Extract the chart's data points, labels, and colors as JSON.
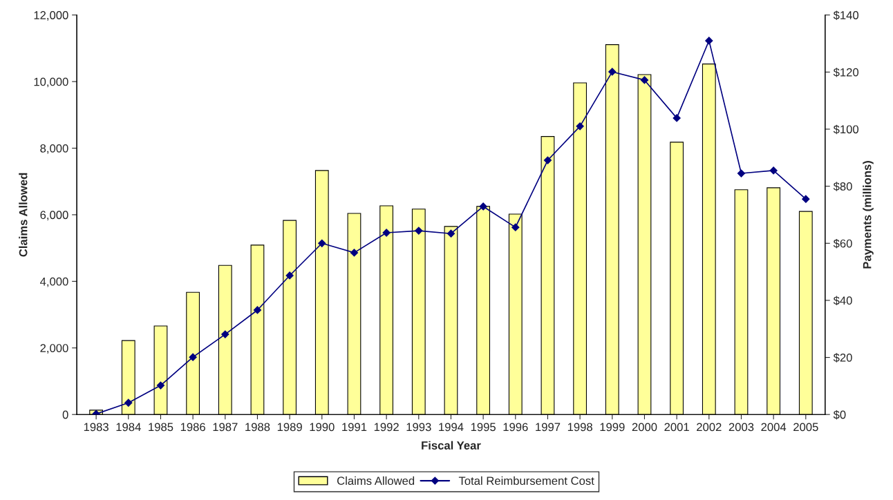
{
  "chart_data": {
    "type": "bar",
    "xlabel": "Fiscal Year",
    "ylabel": "Claims Allowed",
    "y2label": "Payments (millions)",
    "categories": [
      "1983",
      "1984",
      "1985",
      "1986",
      "1987",
      "1988",
      "1989",
      "1990",
      "1991",
      "1992",
      "1993",
      "1994",
      "1995",
      "1996",
      "1997",
      "1998",
      "1999",
      "2000",
      "2001",
      "2002",
      "2003",
      "2004",
      "2005"
    ],
    "series": [
      {
        "name": "Claims Allowed",
        "color": "#ffff99",
        "values": [
          130,
          2220,
          2660,
          3670,
          4480,
          5090,
          5830,
          7330,
          6040,
          6270,
          6170,
          5650,
          6250,
          6020,
          8350,
          9960,
          11110,
          10210,
          8180,
          10530,
          6750,
          6810,
          6100
        ]
      },
      {
        "name": "Total Reimbursement Cost",
        "type": "line",
        "axis": "y2",
        "color": "#000080",
        "marker": "diamond",
        "values": [
          0.2,
          4.1,
          10.2,
          20.1,
          28.1,
          36.6,
          48.7,
          60.0,
          56.7,
          63.7,
          64.4,
          63.4,
          72.9,
          65.6,
          89.1,
          101.0,
          120.1,
          117.2,
          103.9,
          131.0,
          84.5,
          85.5,
          75.5
        ]
      }
    ],
    "ylim": [
      0,
      12000
    ],
    "yticks": [
      {
        "value": 0,
        "label": "0"
      },
      {
        "value": 2000,
        "label": "2,000"
      },
      {
        "value": 4000,
        "label": "4,000"
      },
      {
        "value": 6000,
        "label": "6,000"
      },
      {
        "value": 8000,
        "label": "8,000"
      },
      {
        "value": 10000,
        "label": "10,000"
      },
      {
        "value": 12000,
        "label": "12,000"
      }
    ],
    "y2lim": [
      0,
      140
    ],
    "y2ticks": [
      {
        "value": 0,
        "label": "$0"
      },
      {
        "value": 20,
        "label": "$20"
      },
      {
        "value": 40,
        "label": "$40"
      },
      {
        "value": 60,
        "label": "$60"
      },
      {
        "value": 80,
        "label": "$80"
      },
      {
        "value": 100,
        "label": "$100"
      },
      {
        "value": 120,
        "label": "$120"
      },
      {
        "value": 140,
        "label": "$140"
      }
    ],
    "grid": false,
    "legend": "bottom"
  }
}
